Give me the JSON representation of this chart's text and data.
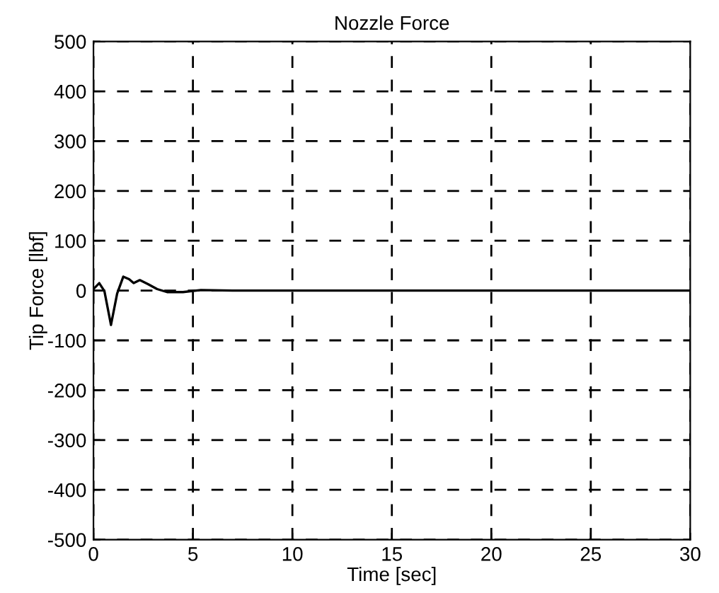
{
  "chart_data": {
    "type": "line",
    "title": "Nozzle Force",
    "xlabel": "Time [sec]",
    "ylabel": "Tip Force [lbf]",
    "x": [
      0,
      0.29,
      0.55,
      0.88,
      1.19,
      1.5,
      1.79,
      2.02,
      2.33,
      2.74,
      3.2,
      3.7,
      4.5,
      5.4,
      7,
      10,
      15,
      20,
      25,
      30
    ],
    "series": [
      {
        "color": "#000000",
        "values": [
          3,
          15,
          -1,
          -69,
          -6,
          28,
          23,
          15,
          21,
          13,
          3,
          -3,
          -3,
          1,
          0,
          0,
          0,
          0,
          0,
          0
        ]
      }
    ],
    "xlim": [
      0,
      30
    ],
    "xticks": [
      0,
      5,
      10,
      15,
      20,
      25,
      30
    ],
    "ylim": [
      -500,
      500
    ],
    "yticks": [
      -500,
      -400,
      -300,
      -200,
      -100,
      0,
      100,
      200,
      300,
      400,
      500
    ],
    "grid": true,
    "line_style": "solid"
  }
}
